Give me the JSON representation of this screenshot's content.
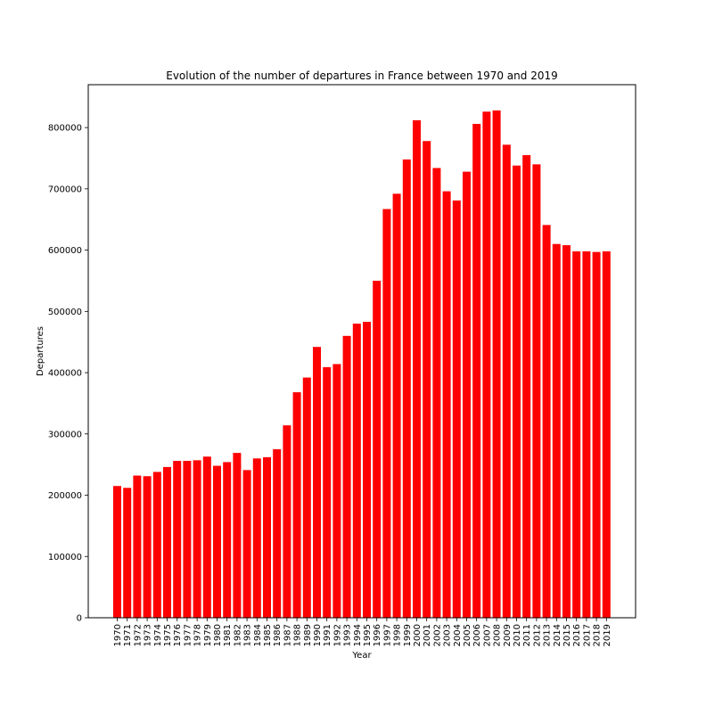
{
  "chart_data": {
    "type": "bar",
    "title": "Evolution of the number of departures in France between 1970 and 2019",
    "xlabel": "Year",
    "ylabel": "Departures",
    "ylim": [
      0,
      870000
    ],
    "yticks": [
      0,
      100000,
      200000,
      300000,
      400000,
      500000,
      600000,
      700000,
      800000
    ],
    "grid": false,
    "bar_color": "#ff0000",
    "categories": [
      "1970",
      "1971",
      "1972",
      "1973",
      "1974",
      "1975",
      "1976",
      "1977",
      "1978",
      "1979",
      "1980",
      "1981",
      "1982",
      "1983",
      "1984",
      "1985",
      "1986",
      "1987",
      "1988",
      "1989",
      "1990",
      "1991",
      "1992",
      "1993",
      "1994",
      "1995",
      "1996",
      "1997",
      "1998",
      "1999",
      "2000",
      "2001",
      "2002",
      "2003",
      "2004",
      "2005",
      "2006",
      "2007",
      "2008",
      "2009",
      "2010",
      "2011",
      "2012",
      "2013",
      "2014",
      "2015",
      "2016",
      "2017",
      "2018",
      "2019"
    ],
    "values": [
      215000,
      212000,
      232000,
      231000,
      238000,
      246000,
      256000,
      256000,
      257000,
      263000,
      248000,
      254000,
      269000,
      241000,
      260000,
      262000,
      275000,
      314000,
      368000,
      392000,
      442000,
      409000,
      414000,
      460000,
      480000,
      483000,
      550000,
      667000,
      692000,
      748000,
      812000,
      778000,
      734000,
      696000,
      681000,
      728000,
      806000,
      826000,
      828000,
      772000,
      738000,
      755000,
      740000,
      641000,
      610000,
      608000,
      598000,
      598000,
      597000,
      598000
    ]
  }
}
